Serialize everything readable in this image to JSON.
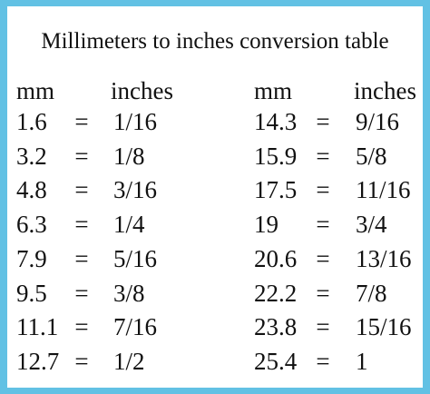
{
  "table": {
    "title": "Millimeters to inches conversion table",
    "header": [
      "mm",
      "inches",
      "mm",
      "inches"
    ],
    "rows": [
      [
        "1.6",
        "=",
        "1/16",
        "14.3",
        "=",
        "9/16"
      ],
      [
        "3.2",
        "=",
        "1/8",
        "15.9",
        "=",
        "5/8"
      ],
      [
        "4.8",
        "=",
        "3/16",
        "17.5",
        "=",
        "11/16"
      ],
      [
        "6.3",
        "=",
        "1/4",
        "19",
        "=",
        "3/4"
      ],
      [
        "7.9",
        "=",
        "5/16",
        "20.6",
        "=",
        "13/16"
      ],
      [
        "9.5",
        "=",
        "3/8",
        "22.2",
        "=",
        "7/8"
      ],
      [
        "11.1",
        "=",
        "7/16",
        "23.8",
        "=",
        "15/16"
      ],
      [
        "12.7",
        "=",
        "1/2",
        "25.4",
        "=",
        "1"
      ]
    ]
  }
}
